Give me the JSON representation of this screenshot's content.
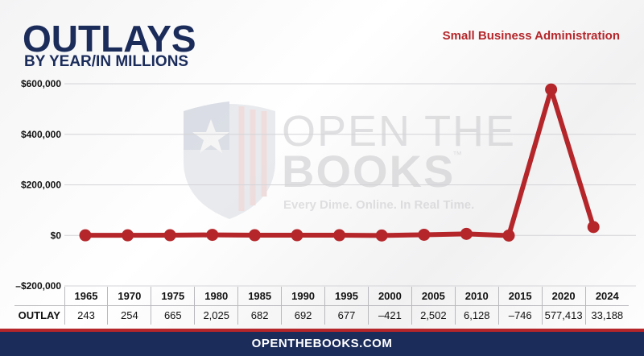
{
  "header": {
    "title": "OUTLAYS",
    "subtitle": "BY YEAR/IN MILLIONS",
    "agency": "Small Business Administration"
  },
  "watermark": {
    "line1": "OPEN THE",
    "line2": "BOOKS",
    "tm": "™",
    "tagline": "Every Dime. Online. In Real Time.",
    "icon": "shield-flag-icon"
  },
  "table": {
    "row_label": "OUTLAY",
    "years": [
      "1965",
      "1970",
      "1975",
      "1980",
      "1985",
      "1990",
      "1995",
      "2000",
      "2005",
      "2010",
      "2015",
      "2020",
      "2024"
    ],
    "values": [
      "243",
      "254",
      "665",
      "2,025",
      "682",
      "692",
      "677",
      "–421",
      "2,502",
      "6,128",
      "–746",
      "577,413",
      "33,188"
    ]
  },
  "footer": {
    "site": "OPENTHEBOOKS.COM"
  },
  "colors": {
    "navy": "#1b2c5b",
    "red": "#b4262a"
  },
  "chart_data": {
    "type": "line",
    "x": [
      "1965",
      "1970",
      "1975",
      "1980",
      "1985",
      "1990",
      "1995",
      "2000",
      "2005",
      "2010",
      "2015",
      "2020",
      "2024"
    ],
    "series": [
      {
        "values": [
          243,
          254,
          665,
          2025,
          682,
          692,
          677,
          -421,
          2502,
          6128,
          -746,
          577413,
          33188
        ]
      }
    ],
    "yticks": [
      -200000,
      0,
      200000,
      400000,
      600000
    ],
    "ytick_labels": [
      "–$200,000",
      "$0",
      "$200,000",
      "$400,000",
      "$600,000"
    ],
    "ylim": [
      -200000,
      600000
    ],
    "grid": true,
    "legend": "none"
  }
}
